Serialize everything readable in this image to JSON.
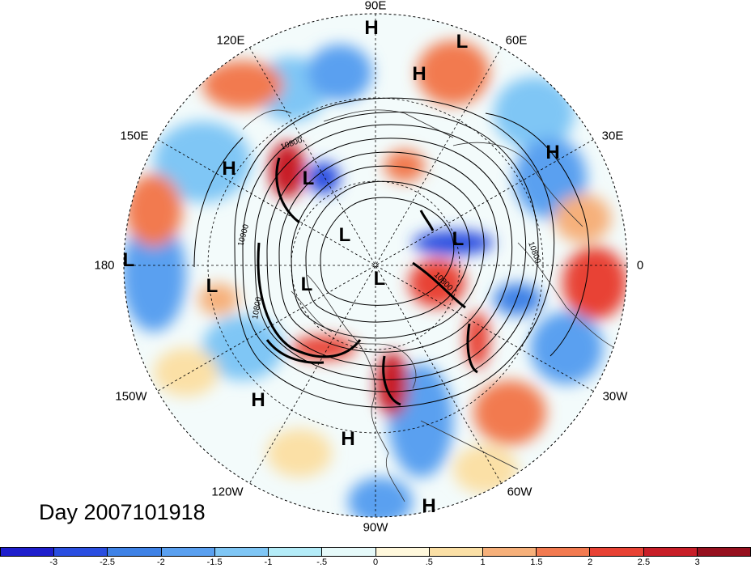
{
  "title": "Day 2007101918",
  "longitude_labels": [
    {
      "text": "90E"
    },
    {
      "text": "60E"
    },
    {
      "text": "30E"
    },
    {
      "text": "0"
    },
    {
      "text": "30W"
    },
    {
      "text": "60W"
    },
    {
      "text": "90W"
    },
    {
      "text": "120W"
    },
    {
      "text": "150W"
    },
    {
      "text": "180"
    },
    {
      "text": "150E"
    },
    {
      "text": "120E"
    }
  ],
  "pressure_centers": [
    {
      "label": "H"
    },
    {
      "label": "L"
    },
    {
      "label": "H"
    },
    {
      "label": "H"
    },
    {
      "label": "H"
    },
    {
      "label": "L"
    },
    {
      "label": "L"
    },
    {
      "label": "L"
    },
    {
      "label": "L"
    },
    {
      "label": "L"
    },
    {
      "label": "L"
    },
    {
      "label": "L"
    },
    {
      "label": "H"
    },
    {
      "label": "H"
    },
    {
      "label": "H"
    }
  ],
  "contour_labels": [
    "10800",
    "10900",
    "10800",
    "10800",
    "10800"
  ],
  "colorbar": {
    "colors": [
      "#1e1ecc",
      "#2a4ee0",
      "#3f82e6",
      "#5aa0f0",
      "#7fc6f5",
      "#b4ecf8",
      "#e6fafa",
      "#fff8dc",
      "#fbe0a6",
      "#f6b07a",
      "#f27a50",
      "#e84234",
      "#c81e28",
      "#96101e"
    ],
    "tick_labels": [
      "-3",
      "-2.5",
      "-2",
      "-1.5",
      "-1",
      "-.5",
      "0",
      ".5",
      "1",
      "1.5",
      "2",
      "2.5",
      "3"
    ]
  }
}
